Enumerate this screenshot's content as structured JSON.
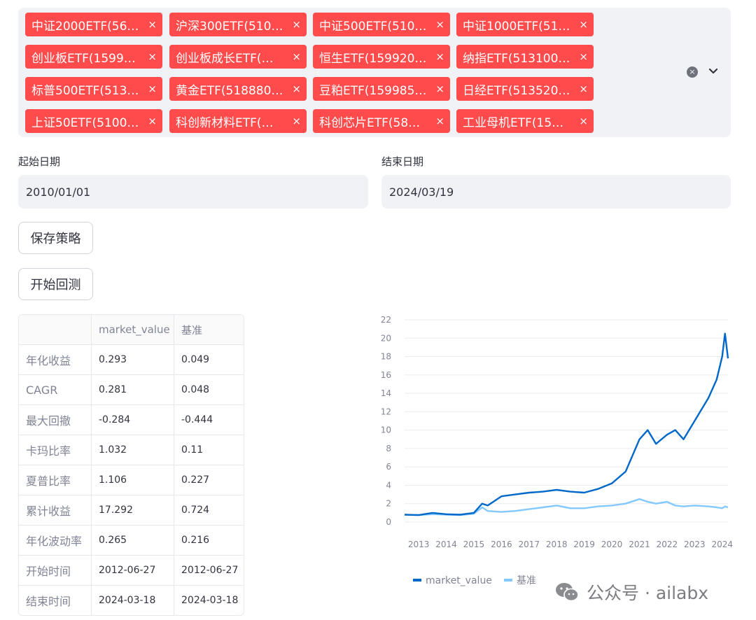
{
  "multiselect": {
    "tags": [
      "中证2000ETF(56…",
      "沪深300ETF(510…",
      "中证500ETF(510…",
      "中证1000ETF(51…",
      "创业板ETF(1599…",
      "创业板成长ETF(…",
      "恒生ETF(159920…",
      "纳指ETF(513100…",
      "标普500ETF(513…",
      "黄金ETF(518880…",
      "豆粕ETF(159985…",
      "日经ETF(513520…",
      "上证50ETF(5100…",
      "科创新材料ETF(…",
      "科创芯片ETF(58…",
      "工业母机ETF(15…"
    ],
    "tag_close": "×",
    "clear_icon": "×"
  },
  "dates": {
    "start_label": "起始日期",
    "start_value": "2010/01/01",
    "end_label": "结束日期",
    "end_value": "2024/03/19"
  },
  "buttons": {
    "save": "保存策略",
    "run": "开始回测"
  },
  "table": {
    "headers": [
      "",
      "market_value",
      "基准"
    ],
    "rows": [
      [
        "年化收益",
        "0.293",
        "0.049"
      ],
      [
        "CAGR",
        "0.281",
        "0.048"
      ],
      [
        "最大回撤",
        "-0.284",
        "-0.444"
      ],
      [
        "卡玛比率",
        "1.032",
        "0.11"
      ],
      [
        "夏普比率",
        "1.106",
        "0.227"
      ],
      [
        "累计收益",
        "17.292",
        "0.724"
      ],
      [
        "年化波动率",
        "0.265",
        "0.216"
      ],
      [
        "开始时间",
        "2012-06-27",
        "2012-06-27"
      ],
      [
        "结束时间",
        "2024-03-18",
        "2024-03-18"
      ]
    ]
  },
  "chart_data": {
    "type": "line",
    "title": "",
    "xlabel": "",
    "ylabel": "",
    "x": [
      2012.49,
      2013,
      2013.5,
      2014,
      2014.5,
      2015,
      2015.3,
      2015.5,
      2016,
      2016.5,
      2017,
      2017.5,
      2018,
      2018.5,
      2019,
      2019.5,
      2020,
      2020.5,
      2021,
      2021.3,
      2021.6,
      2022,
      2022.3,
      2022.6,
      2023,
      2023.5,
      2023.8,
      2024,
      2024.1,
      2024.21
    ],
    "series": [
      {
        "name": "market_value",
        "color": "#0068c9",
        "values": [
          0.8,
          0.75,
          1.0,
          0.85,
          0.8,
          1.0,
          2.0,
          1.8,
          2.8,
          3.0,
          3.2,
          3.3,
          3.5,
          3.3,
          3.2,
          3.6,
          4.2,
          5.5,
          9.0,
          10.0,
          8.5,
          9.5,
          10.0,
          9.0,
          11.0,
          13.5,
          15.5,
          18.0,
          20.5,
          17.8
        ]
      },
      {
        "name": "基准",
        "color": "#83c9ff",
        "values": [
          0.8,
          0.75,
          0.85,
          0.8,
          0.75,
          0.9,
          1.6,
          1.2,
          1.1,
          1.2,
          1.4,
          1.6,
          1.8,
          1.5,
          1.5,
          1.7,
          1.8,
          2.0,
          2.5,
          2.2,
          2.0,
          2.2,
          1.8,
          1.7,
          1.8,
          1.7,
          1.6,
          1.5,
          1.7,
          1.6
        ]
      }
    ],
    "xlim": [
      2012.49,
      2024.21
    ],
    "ylim": [
      0,
      22
    ],
    "yticks": [
      0,
      2,
      4,
      6,
      8,
      10,
      12,
      14,
      16,
      18,
      20,
      22
    ],
    "xticks": [
      "2013",
      "2014",
      "2015",
      "2016",
      "2017",
      "2018",
      "2019",
      "2020",
      "2021",
      "2022",
      "2023",
      "2024"
    ],
    "grid": true,
    "legend": "bottom"
  },
  "watermark": {
    "text": "公众号 · ailabx"
  },
  "colors": {
    "tag": "#ff4b4b",
    "input_bg": "#f0f2f6",
    "series1": "#0068c9",
    "series2": "#83c9ff"
  }
}
